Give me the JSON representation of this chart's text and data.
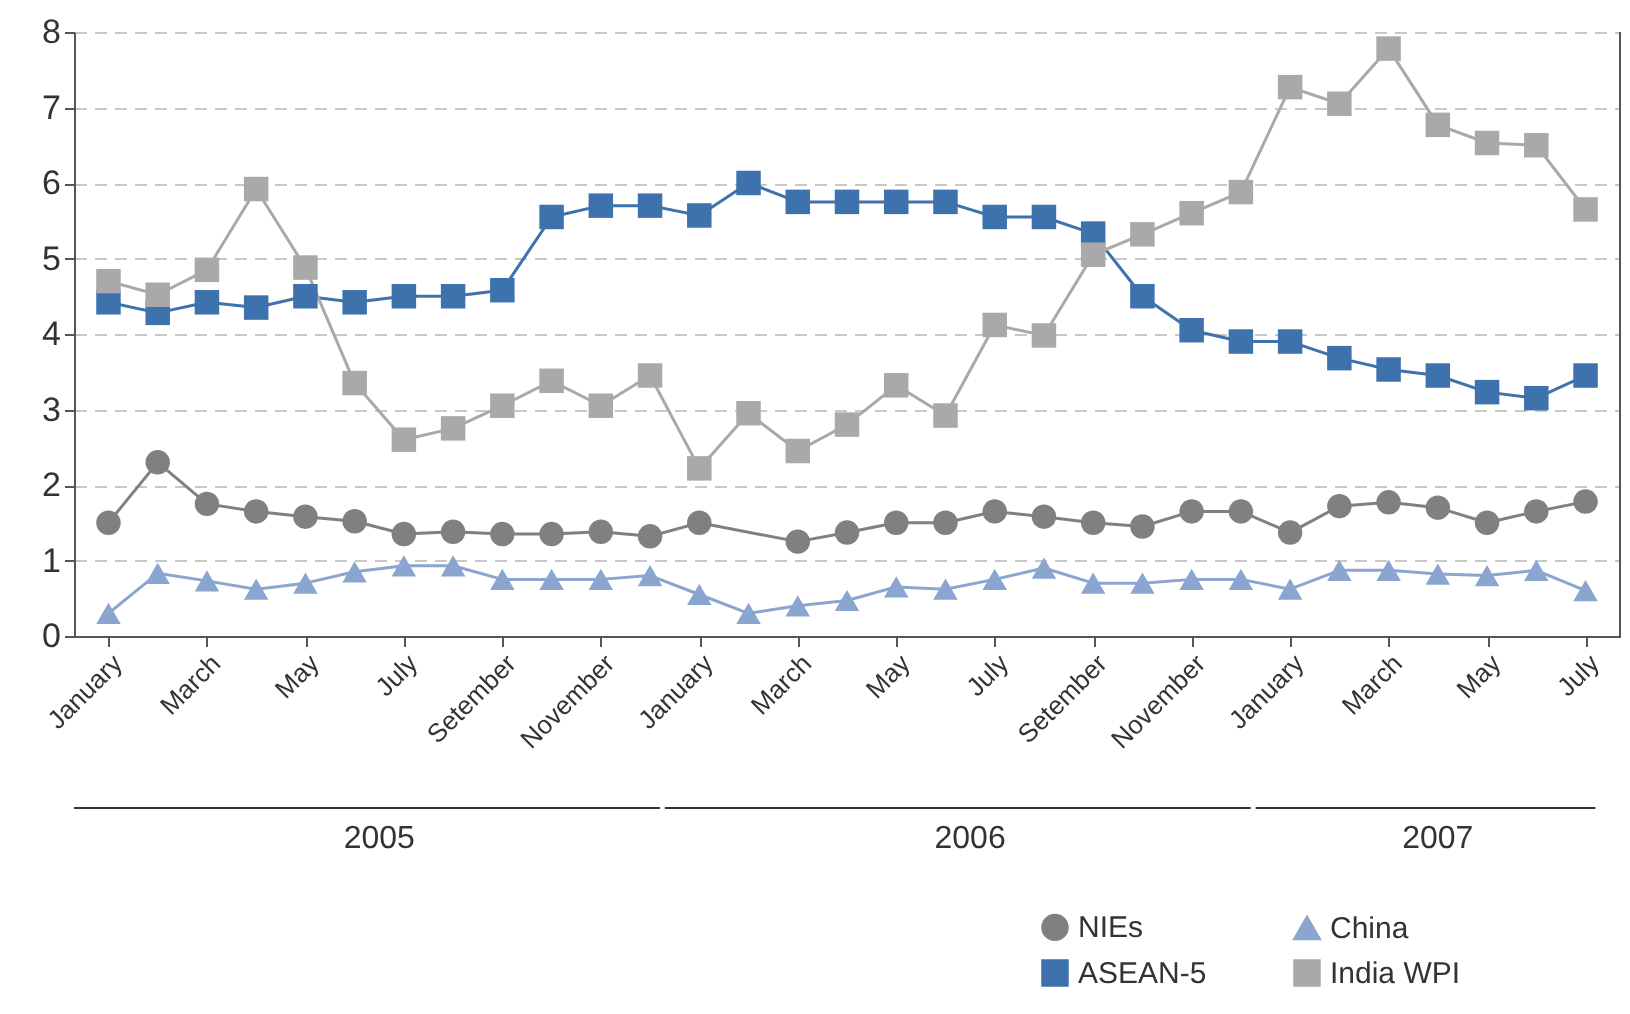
{
  "chart_data": {
    "type": "line",
    "categories": [
      "January",
      null,
      "March",
      null,
      "May",
      null,
      "July",
      null,
      "Setember",
      null,
      "November",
      null,
      "January",
      null,
      "March",
      null,
      "May",
      null,
      "July",
      null,
      "Setember",
      null,
      "November",
      null,
      "January",
      null,
      "March",
      null,
      "May",
      null,
      "July"
    ],
    "annotations": [
      "2005",
      "2006",
      "2007"
    ],
    "ylim": [
      0,
      8
    ],
    "yticks": [
      0,
      1,
      2,
      3,
      4,
      5,
      6,
      7,
      8
    ],
    "grid": "y",
    "legend": "bottom right",
    "line_style": "solid",
    "series": [
      {
        "name": "NIEs",
        "color": "#808083",
        "marker": "circle",
        "values": [
          1.5,
          2.3,
          1.75,
          1.65,
          1.58,
          1.52,
          1.35,
          1.38,
          1.35,
          1.35,
          1.38,
          1.32,
          1.5,
          null,
          1.25,
          1.37,
          1.5,
          1.5,
          1.65,
          1.58,
          1.5,
          1.45,
          1.65,
          1.65,
          1.37,
          1.72,
          1.77,
          1.7,
          1.5,
          1.65,
          1.78
        ]
      },
      {
        "name": "China",
        "color": "#8aa5cf",
        "marker": "triangle",
        "values": [
          0.3,
          0.83,
          0.73,
          0.62,
          0.7,
          0.85,
          0.93,
          0.93,
          0.75,
          0.75,
          0.75,
          0.8,
          0.55,
          0.3,
          0.4,
          0.47,
          0.65,
          0.62,
          0.75,
          0.9,
          0.7,
          0.7,
          0.75,
          0.75,
          0.62,
          0.87,
          0.87,
          0.82,
          0.8,
          0.87,
          0.6
        ]
      },
      {
        "name": "ASEAN-5",
        "color": "#3d72ad",
        "marker": "square",
        "values": [
          4.42,
          4.28,
          4.42,
          4.35,
          4.5,
          4.42,
          4.5,
          4.5,
          4.58,
          5.55,
          5.7,
          5.7,
          5.57,
          6.0,
          5.75,
          5.75,
          5.75,
          5.75,
          5.55,
          5.55,
          5.33,
          4.5,
          4.05,
          3.9,
          3.9,
          3.68,
          3.53,
          3.45,
          3.23,
          3.15,
          3.45
        ]
      },
      {
        "name": "India WPI",
        "color": "#a9a9ac",
        "marker": "square",
        "values": [
          4.7,
          4.52,
          4.85,
          5.92,
          4.88,
          3.35,
          2.6,
          2.75,
          3.05,
          3.38,
          3.05,
          3.45,
          2.22,
          2.95,
          2.45,
          2.8,
          3.32,
          2.92,
          4.12,
          3.98,
          5.05,
          5.32,
          5.6,
          5.88,
          7.27,
          7.05,
          7.78,
          6.77,
          6.53,
          6.5,
          5.65
        ]
      }
    ]
  }
}
